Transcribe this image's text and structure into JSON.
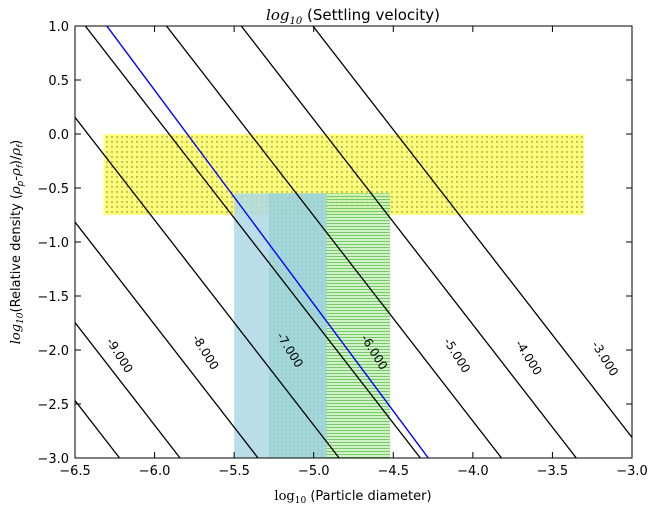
{
  "chart_data": {
    "type": "line",
    "title_prefix": "log",
    "title_sub": "10",
    "title_suffix": " (Settling velocity)",
    "xlabel_prefix": "log",
    "xlabel_sub": "10",
    "xlabel_suffix": " (Particle diameter)",
    "ylabel_prefix": "log",
    "ylabel_sub": "10",
    "ylabel_mid": "(Relative density (",
    "ylabel_math": "ρ",
    "ylabel_sub_p": "p",
    "ylabel_dash": "-",
    "ylabel_sub_f": "f",
    "ylabel_close": ")/",
    "ylabel_sub_f2": "f",
    "ylabel_end": ")",
    "xlim": [
      -6.5,
      -3.0
    ],
    "ylim": [
      -3.0,
      1.0
    ],
    "xticks": [
      -6.5,
      -6.0,
      -5.5,
      -5.0,
      -4.5,
      -4.0,
      -3.5,
      -3.0
    ],
    "xtick_labels": [
      "−6.5",
      "−6.0",
      "−5.5",
      "−5.0",
      "−4.5",
      "−4.0",
      "−3.5",
      "−3.0"
    ],
    "yticks": [
      1.0,
      0.5,
      0.0,
      -0.5,
      -1.0,
      -1.5,
      -2.0,
      -2.5,
      -3.0
    ],
    "ytick_labels": [
      "1.0",
      "0.5",
      "0.0",
      "−0.5",
      "−1.0",
      "−1.5",
      "−2.0",
      "−2.5",
      "−3.0"
    ],
    "contour_slope": -1.9,
    "contours": [
      {
        "x_at_bottom": -6.52
      },
      {
        "x_at_bottom": -6.22
      },
      {
        "x_at_bottom": -5.84,
        "label": "-9.000",
        "label_at": [
          -6.22,
          -2.05
        ]
      },
      {
        "x_at_bottom": -5.35,
        "label": "-8.000",
        "label_at": [
          -5.68,
          -2.02
        ]
      },
      {
        "x_at_bottom": -4.84,
        "label": "-7.000",
        "label_at": [
          -5.15,
          -2.0
        ]
      },
      {
        "x_at_bottom": -4.33,
        "label": "-6.000",
        "label_at": [
          -4.62,
          -2.02
        ]
      },
      {
        "x_at_bottom": -3.82,
        "label": "-5.000",
        "label_at": [
          -4.1,
          -2.05
        ]
      },
      {
        "x_at_bottom": -3.35,
        "label": "-4.000",
        "label_at": [
          -3.65,
          -2.07
        ]
      },
      {
        "x_at_bottom": -2.9,
        "label": "-3.000",
        "label_at": [
          -3.17,
          -2.08
        ]
      }
    ],
    "blue_line": {
      "x": [
        -6.3,
        -4.28
      ],
      "y": [
        1.0,
        -3.0
      ],
      "color": "#0000ff"
    },
    "regions": [
      {
        "x": [
          -6.32,
          -3.3
        ],
        "y": [
          -0.75,
          0.0
        ],
        "color": "#ffff66",
        "hatch": "dots"
      },
      {
        "x": [
          -5.5,
          -4.92
        ],
        "y": [
          -3.0,
          -0.55
        ],
        "color": "#add8e6",
        "hatch": "none"
      },
      {
        "x": [
          -5.28,
          -4.92
        ],
        "y": [
          -3.0,
          -0.55
        ],
        "color": "#9fd6d6",
        "hatch": "dots-light"
      },
      {
        "x": [
          -4.92,
          -4.52
        ],
        "y": [
          -3.0,
          -0.55
        ],
        "color": "#c8f0c0",
        "hatch": "horizontal"
      }
    ]
  }
}
